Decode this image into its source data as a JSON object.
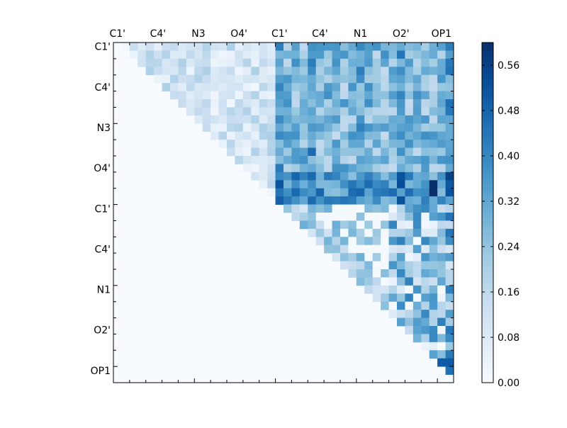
{
  "chart_data": {
    "type": "heatmap",
    "title": "",
    "xlabel": "",
    "ylabel": "",
    "rows": 42,
    "cols": 42,
    "triangle": "upper",
    "colormap": "Blues",
    "x_tick_labels": [
      "C1'",
      "C4'",
      "N3",
      "O4'",
      "C1'",
      "C4'",
      "N1",
      "O2'",
      "OP1"
    ],
    "y_tick_labels": [
      "C1'",
      "C4'",
      "N3",
      "O4'",
      "C1'",
      "C4'",
      "N1",
      "O2'",
      "OP1"
    ],
    "colorbar": {
      "range": [
        0.0,
        0.6
      ],
      "ticks": [
        "0.00",
        "0.08",
        "0.16",
        "0.24",
        "0.32",
        "0.40",
        "0.48",
        "0.56"
      ],
      "location": "right"
    },
    "blocks": {
      "near_diagonal_first_strand": {
        "rows": [
          0,
          20
        ],
        "cols": [
          1,
          20
        ],
        "value_range": [
          0.02,
          0.2
        ]
      },
      "inter_strand": {
        "rows": [
          0,
          20
        ],
        "cols": [
          20,
          42
        ],
        "value_range": [
          0.15,
          0.44
        ],
        "peak_value": 0.6
      },
      "second_strand": {
        "rows": [
          20,
          42
        ],
        "cols": [
          21,
          42
        ],
        "value_range": [
          0.0,
          0.5
        ]
      }
    },
    "colors": {
      "low": "#f7fbff",
      "high": "#08306b"
    }
  }
}
